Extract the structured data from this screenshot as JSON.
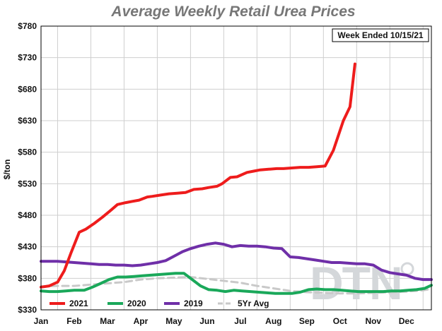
{
  "chart_data": {
    "type": "line",
    "title": "Average Weekly Retail Urea Prices",
    "ylabel": "$/ton",
    "xlabel": "",
    "ylim": [
      330,
      780
    ],
    "yticks": [
      330,
      380,
      430,
      480,
      530,
      580,
      630,
      680,
      730,
      780
    ],
    "ytick_labels": [
      "$330",
      "$380",
      "$430",
      "$480",
      "$530",
      "$580",
      "$630",
      "$680",
      "$730",
      "$780"
    ],
    "xlim": [
      0,
      11.75
    ],
    "x_tick_labels": [
      "Jan",
      "Feb",
      "Mar",
      "Apr",
      "May",
      "Jun",
      "Jul",
      "Aug",
      "Sep",
      "Oct",
      "Nov",
      "Dec"
    ],
    "annotation": "Week Ended 10/15/21",
    "watermark": "DTN",
    "grid": true,
    "legend_position": "bottom-left",
    "series": [
      {
        "name": "2021",
        "color": "#ee1c1c",
        "style": "solid",
        "x": [
          0,
          0.25,
          0.5,
          0.7,
          0.9,
          1.15,
          1.35,
          1.6,
          1.85,
          2.1,
          2.3,
          2.55,
          2.75,
          2.95,
          3.2,
          3.35,
          3.6,
          3.85,
          4.1,
          4.35,
          4.6,
          4.85,
          5.05,
          5.3,
          5.45,
          5.7,
          5.9,
          6.2,
          6.4,
          6.6,
          6.85,
          7.1,
          7.3,
          7.55,
          7.8,
          8.05,
          8.3,
          8.55,
          8.8,
          9.1,
          9.3,
          9.45
        ],
        "values": [
          366,
          368,
          374,
          392,
          420,
          453,
          458,
          467,
          477,
          488,
          497,
          500,
          502,
          504,
          509,
          510,
          512,
          514,
          515,
          516,
          521,
          522,
          524,
          526,
          530,
          540,
          541,
          548,
          550,
          552,
          553,
          554,
          554,
          555,
          556,
          556,
          557,
          558,
          583,
          630,
          652,
          720
        ]
      },
      {
        "name": "2020",
        "color": "#1aa85a",
        "style": "solid",
        "x": [
          0,
          0.25,
          0.5,
          0.75,
          1.0,
          1.3,
          1.55,
          1.8,
          2.05,
          2.3,
          2.55,
          2.8,
          3.05,
          3.3,
          3.55,
          3.8,
          4.05,
          4.3,
          4.55,
          4.8,
          5.05,
          5.3,
          5.55,
          5.8,
          6.05,
          6.3,
          6.55,
          6.8,
          7.05,
          7.3,
          7.55,
          7.8,
          8.05,
          8.3,
          8.55,
          8.8,
          9.05,
          9.3,
          9.55,
          9.8,
          10.05,
          10.3,
          10.55,
          10.8,
          11.05,
          11.3,
          11.55,
          11.75
        ],
        "values": [
          360,
          359,
          359,
          360,
          361,
          361,
          366,
          372,
          378,
          382,
          382,
          383,
          384,
          385,
          386,
          387,
          388,
          388,
          378,
          368,
          362,
          361,
          359,
          361,
          360,
          359,
          358,
          357,
          356,
          356,
          356,
          358,
          362,
          363,
          362,
          362,
          361,
          360,
          359,
          359,
          359,
          359,
          360,
          360,
          361,
          362,
          364,
          369
        ]
      },
      {
        "name": "2019",
        "color": "#6f2fa8",
        "style": "solid",
        "x": [
          0,
          0.25,
          0.5,
          0.75,
          1.0,
          1.25,
          1.5,
          1.75,
          2.0,
          2.25,
          2.5,
          2.75,
          3.0,
          3.25,
          3.5,
          3.75,
          4.0,
          4.25,
          4.5,
          4.75,
          5.0,
          5.25,
          5.5,
          5.75,
          6.0,
          6.25,
          6.5,
          6.75,
          7.0,
          7.25,
          7.5,
          7.75,
          8.0,
          8.25,
          8.5,
          8.75,
          9.0,
          9.25,
          9.5,
          9.75,
          10.0,
          10.25,
          10.5,
          10.75,
          11.0,
          11.25,
          11.5,
          11.75
        ],
        "values": [
          407,
          407,
          407,
          406,
          405,
          404,
          403,
          402,
          402,
          401,
          401,
          400,
          401,
          403,
          405,
          408,
          415,
          422,
          427,
          431,
          434,
          436,
          434,
          430,
          432,
          431,
          431,
          430,
          428,
          427,
          414,
          413,
          411,
          409,
          407,
          405,
          405,
          404,
          403,
          403,
          401,
          393,
          389,
          387,
          385,
          380,
          378,
          378
        ]
      },
      {
        "name": "5Yr Avg",
        "color": "#c9c9c9",
        "style": "dashed",
        "x": [
          0,
          0.5,
          1.0,
          1.5,
          2.0,
          2.5,
          3.0,
          3.5,
          4.0,
          4.5,
          5.0,
          5.5,
          6.0,
          6.5,
          7.0,
          7.5,
          8.0,
          8.5,
          9.0,
          9.5,
          10.0,
          10.5,
          11.0,
          11.5,
          11.75
        ],
        "values": [
          367,
          368,
          368,
          370,
          372,
          374,
          378,
          380,
          381,
          382,
          379,
          376,
          373,
          368,
          364,
          360,
          358,
          357,
          356,
          356,
          357,
          358,
          359,
          361,
          363
        ]
      }
    ]
  }
}
